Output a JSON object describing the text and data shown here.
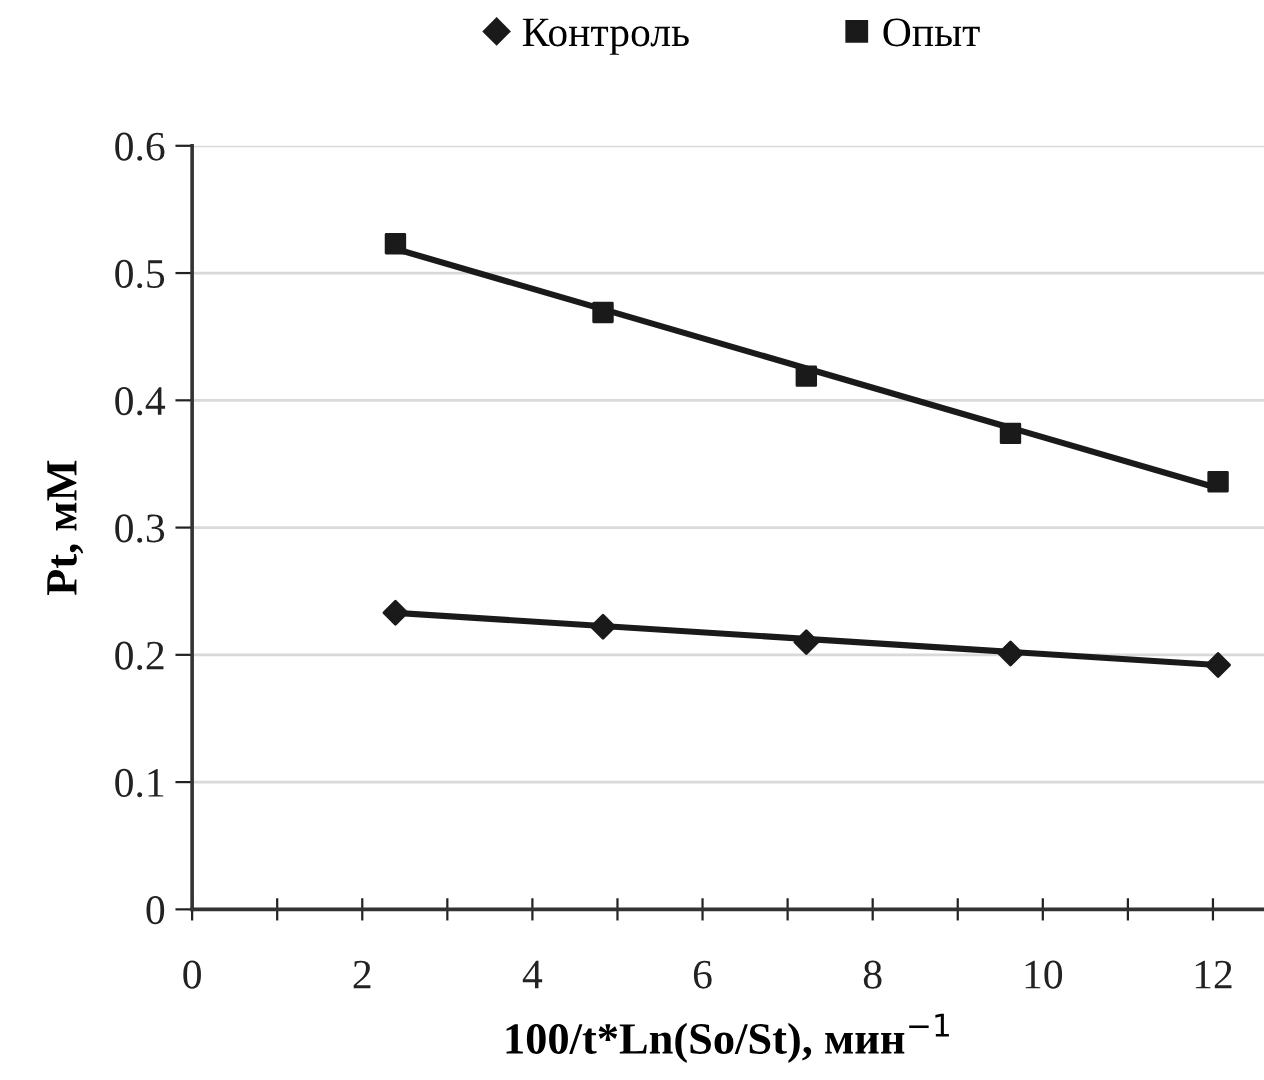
{
  "chart_data": {
    "type": "scatter",
    "xlabel": "100/t*Ln(So/St), мин$^{−1}$",
    "ylabel": "Pt, мМ",
    "xlim": [
      0,
      12.6
    ],
    "xticks": [
      0,
      {
        "value": 1,
        "label": null
      },
      2,
      {
        "value": 3,
        "label": null
      },
      4,
      {
        "value": 5,
        "label": null
      },
      6,
      {
        "value": 7,
        "label": null
      },
      8,
      {
        "value": 9,
        "label": null
      },
      10,
      {
        "value": 11,
        "label": null
      },
      12
    ],
    "ylim": [
      0,
      0.6
    ],
    "yticks": [
      0,
      0.1,
      0.2,
      0.3,
      0.4,
      0.5,
      0.6
    ],
    "grid": "y",
    "legend": "top",
    "series": [
      {
        "name": "Контроль",
        "marker": "diamond",
        "color": "#1a1a1a",
        "x": [
          2.39,
          4.83,
          7.22,
          9.62,
          12.06
        ],
        "values": [
          0.233,
          0.222,
          0.21,
          0.201,
          0.192
        ]
      },
      {
        "name": "Опыт",
        "marker": "square",
        "color": "#1a1a1a",
        "x": [
          2.39,
          4.83,
          7.22,
          9.62,
          12.06
        ],
        "values": [
          0.523,
          0.469,
          0.419,
          0.374,
          0.336
        ]
      },
      {
        "type": "line",
        "color": "#1a1a1a",
        "x": [
          2.39,
          12.06
        ],
        "values": [
          0.233,
          0.192
        ]
      },
      {
        "type": "line",
        "color": "#1a1a1a",
        "x": [
          2.39,
          12.06
        ],
        "values": [
          0.519,
          0.331
        ]
      }
    ]
  }
}
